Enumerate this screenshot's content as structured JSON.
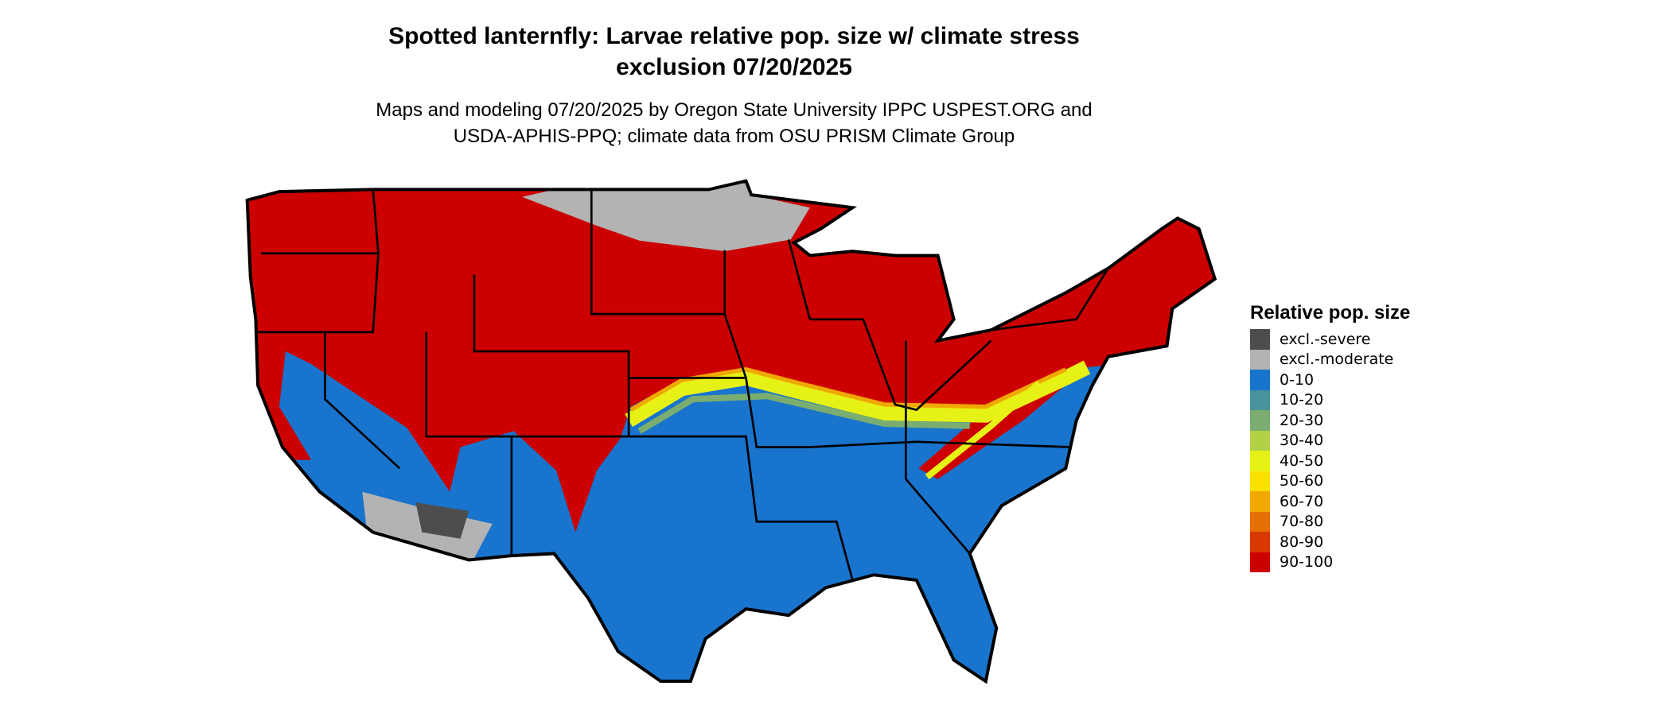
{
  "title_line1": "Spotted lanternfly: Larvae relative pop. size w/ climate stress",
  "title_line2": "exclusion 07/20/2025",
  "subtitle_line1": "Maps and modeling 07/20/2025 by Oregon State University IPPC USPEST.ORG and",
  "subtitle_line2": "USDA-APHIS-PPQ; climate data from OSU PRISM Climate Group",
  "chart_data": {
    "type": "heatmap",
    "region": "Contiguous United States",
    "legend_title": "Relative pop. size",
    "legend_placement": "right",
    "legend": [
      {
        "label": "excl.-severe",
        "color": "#4d4d4d"
      },
      {
        "label": "excl.-moderate",
        "color": "#b3b3b3"
      },
      {
        "label": "0-10",
        "color": "#1874cd"
      },
      {
        "label": "10-20",
        "color": "#48929b"
      },
      {
        "label": "20-30",
        "color": "#7aad6f"
      },
      {
        "label": "30-40",
        "color": "#b3d147"
      },
      {
        "label": "40-50",
        "color": "#e6f216"
      },
      {
        "label": "50-60",
        "color": "#f9e000"
      },
      {
        "label": "60-70",
        "color": "#f0a800"
      },
      {
        "label": "70-80",
        "color": "#e56f00"
      },
      {
        "label": "80-90",
        "color": "#d93800"
      },
      {
        "label": "90-100",
        "color": "#cc0000"
      }
    ]
  }
}
